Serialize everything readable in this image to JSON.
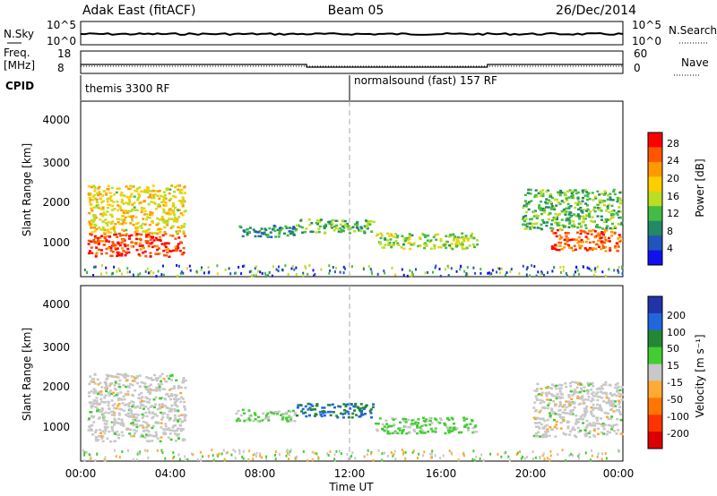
{
  "header": {
    "station": "Adak East (fitACF)",
    "beam": "Beam 05",
    "date": "26/Dec/2014"
  },
  "top_panels": {
    "nsky_label": "N.Sky",
    "nsky_ticks": [
      "10^5",
      "10^0"
    ],
    "nsearch_label": "N.Search",
    "nsearch_ticks": [
      "10^5",
      "10^0"
    ],
    "freq_label": "Freq.",
    "freq_unit": "[MHz]",
    "freq_ticks": [
      "18",
      "8"
    ],
    "nave_label": "Nave",
    "nave_ticks": [
      "60",
      "0"
    ],
    "cpid_label": "CPID",
    "cpid_segments": [
      {
        "name": "themis 3300 RF",
        "start_h": 0,
        "end_h": 12
      },
      {
        "name": "normalsound (fast) 157 RF",
        "start_h": 12,
        "end_h": 24
      }
    ],
    "freq_trace": [
      {
        "start_h": 0,
        "end_h": 10,
        "mhz": 12.0
      },
      {
        "start_h": 10,
        "end_h": 18,
        "mhz": 10.8
      },
      {
        "start_h": 18,
        "end_h": 24,
        "mhz": 12.0
      }
    ]
  },
  "power_panel": {
    "ylabel": "Slant Range [km]",
    "yticks": [
      "4000",
      "3000",
      "2000",
      "1000"
    ],
    "colorbar_label": "Power [dB]",
    "colorbar_ticks": [
      "28",
      "24",
      "20",
      "16",
      "12",
      "8",
      "4"
    ],
    "colorbar_colors": [
      "#ff0000",
      "#ff5500",
      "#ff9900",
      "#ffcc00",
      "#bbdd22",
      "#44bb44",
      "#228866",
      "#2255bb",
      "#1111ee"
    ]
  },
  "velocity_panel": {
    "ylabel": "Slant Range [km]",
    "yticks": [
      "4000",
      "3000",
      "2000",
      "1000"
    ],
    "colorbar_label": "Velocity [m s⁻¹]",
    "colorbar_ticks": [
      "200",
      "100",
      "50",
      "15",
      "-15",
      "-50",
      "-100",
      "-200"
    ],
    "colorbar_colors": [
      "#2233aa",
      "#2266dd",
      "#228833",
      "#44cc33",
      "#c8c8c8",
      "#ffaa33",
      "#ff7700",
      "#ff3300",
      "#dd0000"
    ]
  },
  "x_axis": {
    "ticks": [
      "00:00",
      "04:00",
      "08:00",
      "12:00",
      "16:00",
      "20:00",
      "00:00"
    ],
    "label": "Time UT"
  },
  "chart_data": [
    {
      "type": "heatmap",
      "title": "Power [dB]",
      "xlabel": "Time UT",
      "ylabel": "Slant Range [km]",
      "xlim_hours": [
        0,
        24
      ],
      "ylim_km": [
        180,
        4600
      ],
      "colorbar_range_db": [
        0,
        30
      ],
      "regions": [
        {
          "start_h": 0.3,
          "end_h": 4.6,
          "min_km": 700,
          "max_km": 1300,
          "level_db": 28
        },
        {
          "start_h": 0.3,
          "end_h": 4.6,
          "min_km": 1300,
          "max_km": 2500,
          "level_db": 18
        },
        {
          "start_h": 6.8,
          "end_h": 9.5,
          "min_km": 1200,
          "max_km": 1500,
          "level_db": 8
        },
        {
          "start_h": 9.5,
          "end_h": 13.0,
          "min_km": 1300,
          "max_km": 1650,
          "level_db": 12
        },
        {
          "start_h": 13.0,
          "end_h": 17.5,
          "min_km": 900,
          "max_km": 1300,
          "level_db": 14
        },
        {
          "start_h": 20.8,
          "end_h": 23.9,
          "min_km": 850,
          "max_km": 1400,
          "level_db": 26
        },
        {
          "start_h": 19.5,
          "end_h": 23.9,
          "min_km": 1400,
          "max_km": 2400,
          "level_db": 12
        }
      ]
    },
    {
      "type": "heatmap",
      "title": "Velocity [m s⁻¹]",
      "xlabel": "Time UT",
      "ylabel": "Slant Range [km]",
      "xlim_hours": [
        0,
        24
      ],
      "ylim_km": [
        180,
        4600
      ],
      "colorbar_range_ms": [
        -200,
        200
      ],
      "regions": [
        {
          "start_h": 0.3,
          "end_h": 4.6,
          "min_km": 700,
          "max_km": 2400,
          "velocity_ms": 0
        },
        {
          "start_h": 6.8,
          "end_h": 9.5,
          "min_km": 1200,
          "max_km": 1500,
          "velocity_ms": 30
        },
        {
          "start_h": 9.5,
          "end_h": 13.0,
          "min_km": 1300,
          "max_km": 1650,
          "velocity_ms": 120
        },
        {
          "start_h": 13.0,
          "end_h": 17.5,
          "min_km": 900,
          "max_km": 1300,
          "velocity_ms": 40
        },
        {
          "start_h": 20.0,
          "end_h": 23.9,
          "min_km": 800,
          "max_km": 2200,
          "velocity_ms": 0
        }
      ]
    }
  ]
}
